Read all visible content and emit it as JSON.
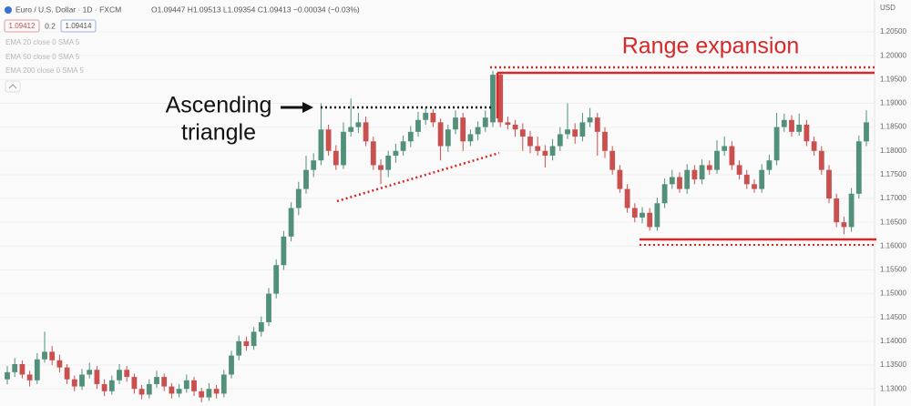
{
  "header": {
    "symbol": "Euro / U.S. Dollar · 1D · FXCM",
    "ohlc": "O1.09447 H1.09513 L1.09354 C1.09413 −0.00034 (−0.03%)",
    "sell": "1.09412",
    "spread": "0.2",
    "buy": "1.09414",
    "indicators": [
      "EMA 20 close 0 SMA 5",
      "EMA 50 close 0 SMA 5",
      "EMA 200 close 0 SMA 5"
    ],
    "currency": "USD"
  },
  "annotations": {
    "triangle_line1": "Ascending",
    "triangle_line2": "triangle",
    "range": "Range expansion"
  },
  "chart_data": {
    "type": "candlestick",
    "up_color": "#52907a",
    "down_color": "#c9504f",
    "grid": true,
    "ylim": [
      1.1264,
      1.2117
    ],
    "yticks": [
      {
        "value": 1.205,
        "label": "1.20500"
      },
      {
        "value": 1.2,
        "label": "1.20000"
      },
      {
        "value": 1.195,
        "label": "1.19500"
      },
      {
        "value": 1.19,
        "label": "1.19000"
      },
      {
        "value": 1.185,
        "label": "1.18500"
      },
      {
        "value": 1.18,
        "label": "1.18000"
      },
      {
        "value": 1.175,
        "label": "1.17500"
      },
      {
        "value": 1.17,
        "label": "1.17000"
      },
      {
        "value": 1.165,
        "label": "1.16500"
      },
      {
        "value": 1.16,
        "label": "1.16000"
      },
      {
        "value": 1.155,
        "label": "1.15500"
      },
      {
        "value": 1.15,
        "label": "1.15000"
      },
      {
        "value": 1.145,
        "label": "1.14500"
      },
      {
        "value": 1.14,
        "label": "1.14000"
      },
      {
        "value": 1.135,
        "label": "1.13500"
      },
      {
        "value": 1.13,
        "label": "1.13000"
      }
    ],
    "ohlc": [
      [
        1.132,
        1.1348,
        1.131,
        1.1335
      ],
      [
        1.1335,
        1.1365,
        1.1325,
        1.1352
      ],
      [
        1.1352,
        1.136,
        1.1322,
        1.133
      ],
      [
        1.133,
        1.1338,
        1.1305,
        1.1318
      ],
      [
        1.1318,
        1.1375,
        1.131,
        1.1362
      ],
      [
        1.1362,
        1.142,
        1.1355,
        1.1378
      ],
      [
        1.1378,
        1.139,
        1.135,
        1.136
      ],
      [
        1.136,
        1.1372,
        1.1335,
        1.1345
      ],
      [
        1.1345,
        1.1352,
        1.131,
        1.132
      ],
      [
        1.132,
        1.1328,
        1.1295,
        1.1305
      ],
      [
        1.1305,
        1.1342,
        1.1298,
        1.133
      ],
      [
        1.133,
        1.1355,
        1.1322,
        1.134
      ],
      [
        1.134,
        1.1348,
        1.13,
        1.131
      ],
      [
        1.131,
        1.132,
        1.1285,
        1.1295
      ],
      [
        1.1295,
        1.1328,
        1.1288,
        1.1318
      ],
      [
        1.1318,
        1.1352,
        1.131,
        1.134
      ],
      [
        1.134,
        1.1348,
        1.1315,
        1.1325
      ],
      [
        1.1325,
        1.1332,
        1.129,
        1.13
      ],
      [
        1.13,
        1.1308,
        1.1278,
        1.1288
      ],
      [
        1.1288,
        1.132,
        1.128,
        1.131
      ],
      [
        1.131,
        1.1338,
        1.1302,
        1.1325
      ],
      [
        1.1325,
        1.1332,
        1.1295,
        1.1305
      ],
      [
        1.1305,
        1.1312,
        1.128,
        1.129
      ],
      [
        1.129,
        1.131,
        1.1282,
        1.13
      ],
      [
        1.13,
        1.133,
        1.1292,
        1.1318
      ],
      [
        1.1318,
        1.1325,
        1.1285,
        1.1295
      ],
      [
        1.1295,
        1.1302,
        1.1272,
        1.1282
      ],
      [
        1.1282,
        1.1312,
        1.1275,
        1.13
      ],
      [
        1.13,
        1.1308,
        1.128,
        1.129
      ],
      [
        1.129,
        1.134,
        1.1282,
        1.133
      ],
      [
        1.133,
        1.138,
        1.1322,
        1.137
      ],
      [
        1.137,
        1.1412,
        1.136,
        1.14
      ],
      [
        1.14,
        1.141,
        1.138,
        1.139
      ],
      [
        1.139,
        1.143,
        1.1382,
        1.142
      ],
      [
        1.142,
        1.1452,
        1.141,
        1.144
      ],
      [
        1.144,
        1.1512,
        1.1432,
        1.15
      ],
      [
        1.15,
        1.1572,
        1.149,
        1.156
      ],
      [
        1.156,
        1.1632,
        1.155,
        1.162
      ],
      [
        1.162,
        1.1692,
        1.161,
        1.168
      ],
      [
        1.168,
        1.1735,
        1.1665,
        1.172
      ],
      [
        1.172,
        1.179,
        1.171,
        1.176
      ],
      [
        1.176,
        1.1795,
        1.1745,
        1.178
      ],
      [
        1.178,
        1.19,
        1.177,
        1.1845
      ],
      [
        1.1845,
        1.1855,
        1.179,
        1.18
      ],
      [
        1.18,
        1.1812,
        1.176,
        1.177
      ],
      [
        1.177,
        1.186,
        1.1762,
        1.184
      ],
      [
        1.184,
        1.191,
        1.183,
        1.185
      ],
      [
        1.185,
        1.188,
        1.1838,
        1.186
      ],
      [
        1.186,
        1.1872,
        1.181,
        1.182
      ],
      [
        1.182,
        1.183,
        1.176,
        1.177
      ],
      [
        1.177,
        1.1782,
        1.173,
        1.176
      ],
      [
        1.176,
        1.18,
        1.1745,
        1.179
      ],
      [
        1.179,
        1.1815,
        1.1775,
        1.18
      ],
      [
        1.18,
        1.1832,
        1.179,
        1.182
      ],
      [
        1.182,
        1.1852,
        1.1808,
        1.184
      ],
      [
        1.184,
        1.1882,
        1.183,
        1.1865
      ],
      [
        1.1865,
        1.1892,
        1.1855,
        1.188
      ],
      [
        1.188,
        1.1888,
        1.185,
        1.186
      ],
      [
        1.186,
        1.1868,
        1.178,
        1.181
      ],
      [
        1.181,
        1.1855,
        1.1798,
        1.1845
      ],
      [
        1.1845,
        1.1885,
        1.1835,
        1.187
      ],
      [
        1.187,
        1.188,
        1.18,
        1.182
      ],
      [
        1.182,
        1.1845,
        1.181,
        1.1835
      ],
      [
        1.1835,
        1.1862,
        1.1822,
        1.185
      ],
      [
        1.185,
        1.1885,
        1.184,
        1.187
      ],
      [
        1.186,
        1.1968,
        1.185,
        1.196
      ],
      [
        1.196,
        1.1962,
        1.185,
        1.186
      ],
      [
        1.186,
        1.1872,
        1.1845,
        1.1855
      ],
      [
        1.1855,
        1.1865,
        1.183,
        1.1845
      ],
      [
        1.1845,
        1.1858,
        1.18,
        1.183
      ],
      [
        1.183,
        1.1842,
        1.1795,
        1.181
      ],
      [
        1.181,
        1.183,
        1.179,
        1.18
      ],
      [
        1.18,
        1.1812,
        1.1765,
        1.179
      ],
      [
        1.179,
        1.1825,
        1.178,
        1.181
      ],
      [
        1.181,
        1.185,
        1.18,
        1.1835
      ],
      [
        1.1835,
        1.19,
        1.1825,
        1.1845
      ],
      [
        1.1845,
        1.1858,
        1.1815,
        1.183
      ],
      [
        1.183,
        1.188,
        1.182,
        1.186
      ],
      [
        1.186,
        1.189,
        1.185,
        1.187
      ],
      [
        1.187,
        1.188,
        1.179,
        1.184
      ],
      [
        1.184,
        1.185,
        1.1785,
        1.18
      ],
      [
        1.18,
        1.181,
        1.175,
        1.176
      ],
      [
        1.176,
        1.177,
        1.1712,
        1.172
      ],
      [
        1.172,
        1.173,
        1.167,
        1.168
      ],
      [
        1.168,
        1.169,
        1.165,
        1.166
      ],
      [
        1.166,
        1.1682,
        1.1648,
        1.167
      ],
      [
        1.167,
        1.168,
        1.1632,
        1.164
      ],
      [
        1.164,
        1.1702,
        1.1632,
        1.169
      ],
      [
        1.169,
        1.1742,
        1.168,
        1.173
      ],
      [
        1.173,
        1.176,
        1.172,
        1.1745
      ],
      [
        1.1745,
        1.1755,
        1.1712,
        1.172
      ],
      [
        1.172,
        1.1772,
        1.171,
        1.176
      ],
      [
        1.176,
        1.177,
        1.173,
        1.174
      ],
      [
        1.174,
        1.1782,
        1.173,
        1.177
      ],
      [
        1.177,
        1.178,
        1.175,
        1.176
      ],
      [
        1.176,
        1.1822,
        1.1752,
        1.18
      ],
      [
        1.18,
        1.183,
        1.179,
        1.181
      ],
      [
        1.181,
        1.182,
        1.176,
        1.177
      ],
      [
        1.177,
        1.178,
        1.174,
        1.175
      ],
      [
        1.175,
        1.176,
        1.172,
        1.173
      ],
      [
        1.173,
        1.174,
        1.1712,
        1.172
      ],
      [
        1.172,
        1.1772,
        1.1712,
        1.176
      ],
      [
        1.176,
        1.1792,
        1.175,
        1.178
      ],
      [
        1.178,
        1.188,
        1.177,
        1.185
      ],
      [
        1.185,
        1.1878,
        1.184,
        1.1865
      ],
      [
        1.1865,
        1.1875,
        1.183,
        1.184
      ],
      [
        1.184,
        1.1878,
        1.1832,
        1.1855
      ],
      [
        1.1855,
        1.1865,
        1.181,
        1.182
      ],
      [
        1.182,
        1.183,
        1.179,
        1.18
      ],
      [
        1.18,
        1.181,
        1.175,
        1.176
      ],
      [
        1.176,
        1.177,
        1.169,
        1.17
      ],
      [
        1.17,
        1.171,
        1.164,
        1.165
      ],
      [
        1.165,
        1.1662,
        1.1625,
        1.164
      ],
      [
        1.164,
        1.1722,
        1.163,
        1.171
      ],
      [
        1.171,
        1.1832,
        1.17,
        1.182
      ],
      [
        1.182,
        1.1885,
        1.181,
        1.186
      ]
    ]
  }
}
